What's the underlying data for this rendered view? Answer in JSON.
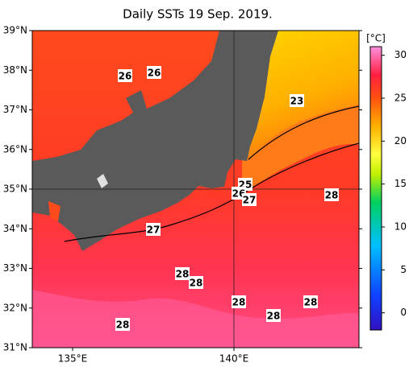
{
  "title": "Daily SSTs 19 Sep. 2019.",
  "lat_ticks": [
    {
      "value": 39,
      "label": "39°N"
    },
    {
      "value": 38,
      "label": "38°N"
    },
    {
      "value": 37,
      "label": "37°N"
    },
    {
      "value": 36,
      "label": "36°N"
    },
    {
      "value": 35,
      "label": "35°N",
      "grid": true
    },
    {
      "value": 34,
      "label": "34°N"
    },
    {
      "value": 33,
      "label": "33°N"
    },
    {
      "value": 32,
      "label": "32°N"
    },
    {
      "value": 31,
      "label": "31°N"
    }
  ],
  "lon_ticks": [
    {
      "value": 135,
      "label": "135°E"
    },
    {
      "value": 140,
      "label": "140°E",
      "grid": true
    }
  ],
  "lat_lim": [
    31,
    39
  ],
  "lon_lim": [
    133.75,
    143.875
  ],
  "colorbar": {
    "unit": "[°C]",
    "lim": [
      -2,
      31
    ],
    "ticks": [
      30,
      25,
      20,
      15,
      10,
      5,
      0
    ]
  },
  "contour_labels": [
    "26",
    "26",
    "23",
    "25",
    "26",
    "27",
    "28",
    "27",
    "28",
    "28",
    "28",
    "28",
    "28",
    "28"
  ]
}
